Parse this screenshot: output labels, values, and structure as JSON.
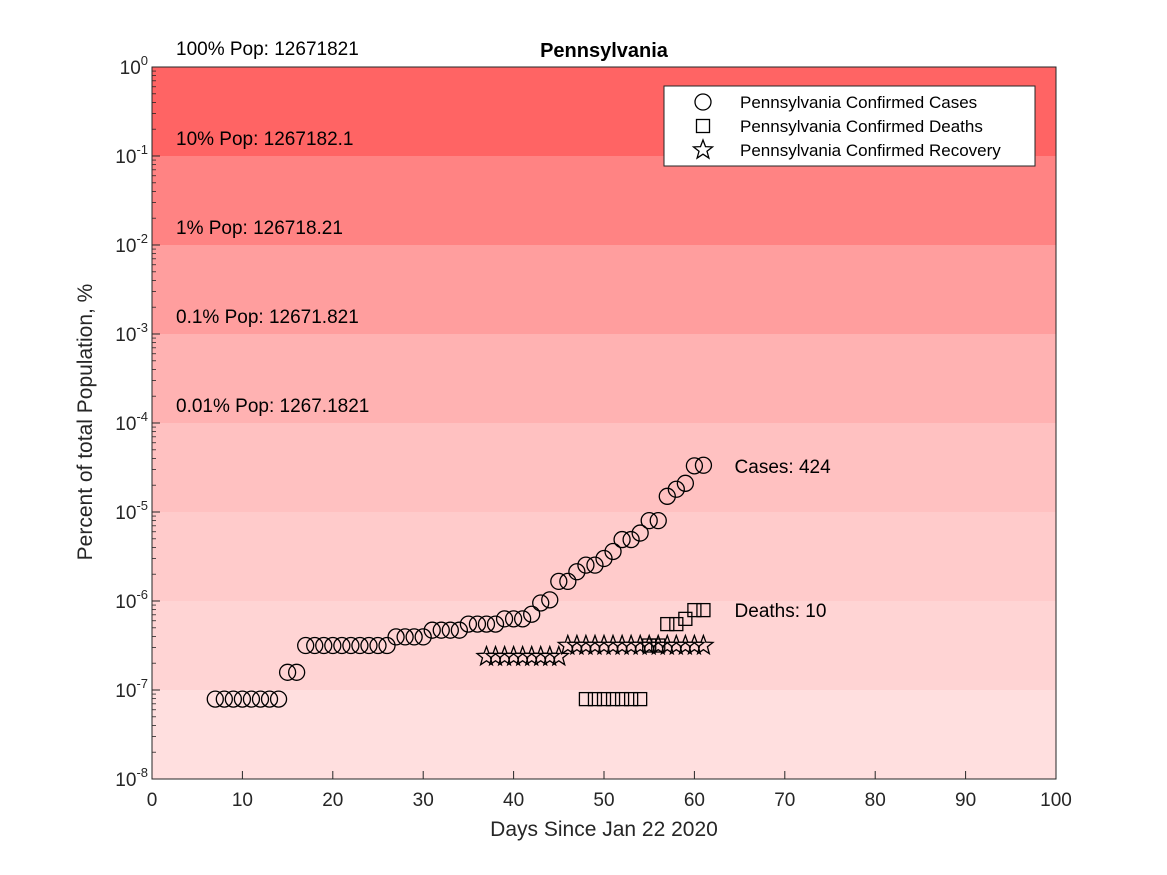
{
  "chart_data": {
    "type": "scatter",
    "title": "Pennsylvania",
    "xlabel": "Days Since Jan 22 2020",
    "ylabel": "Percent of total Population, %",
    "xlim": [
      0,
      100
    ],
    "ylim": [
      1e-08,
      1
    ],
    "yscale": "log",
    "grid": false,
    "legend_position": "top-right",
    "x_ticks": [
      "0",
      "10",
      "20",
      "30",
      "40",
      "50",
      "60",
      "70",
      "80",
      "90",
      "100"
    ],
    "y_ticks": [
      {
        "base": "10",
        "exp": "-8"
      },
      {
        "base": "10",
        "exp": "-7"
      },
      {
        "base": "10",
        "exp": "-6"
      },
      {
        "base": "10",
        "exp": "-5"
      },
      {
        "base": "10",
        "exp": "-4"
      },
      {
        "base": "10",
        "exp": "-3"
      },
      {
        "base": "10",
        "exp": "-2"
      },
      {
        "base": "10",
        "exp": "-1"
      },
      {
        "base": "10",
        "exp": "0"
      }
    ],
    "bands": [
      {
        "label": "100% Pop: 12671821",
        "from": 0.1,
        "to": 1,
        "color": "#ff6464"
      },
      {
        "label": "10% Pop: 1267182.1",
        "from": 0.01,
        "to": 0.1,
        "color": "#ff8383"
      },
      {
        "label": "1% Pop: 126718.21",
        "from": 0.001,
        "to": 0.01,
        "color": "#ff9e9e"
      },
      {
        "label": "0.1% Pop: 12671.821",
        "from": 0.0001,
        "to": 0.001,
        "color": "#ffb2b2"
      },
      {
        "label": "0.01% Pop: 1267.1821",
        "from": 1e-05,
        "to": 0.0001,
        "color": "#ffc1c1"
      },
      {
        "label": "",
        "from": 1e-06,
        "to": 1e-05,
        "color": "#ffcbcb"
      },
      {
        "label": "",
        "from": 1e-07,
        "to": 1e-06,
        "color": "#ffd4d4"
      },
      {
        "label": "",
        "from": 1e-08,
        "to": 1e-07,
        "color": "#ffdfdf"
      }
    ],
    "series": [
      {
        "name": "Pennsylvania Confirmed Cases",
        "marker": "circle",
        "x": [
          7,
          8,
          9,
          10,
          11,
          12,
          13,
          14,
          15,
          16,
          17,
          18,
          19,
          20,
          21,
          22,
          23,
          24,
          25,
          26,
          27,
          28,
          29,
          30,
          31,
          32,
          33,
          34,
          35,
          36,
          37,
          38,
          39,
          40,
          41,
          42,
          43,
          44,
          45,
          46,
          47,
          48,
          49,
          50,
          51,
          52,
          53,
          54,
          55,
          56,
          57,
          58,
          59,
          60,
          61
        ],
        "y": [
          7.9e-08,
          7.9e-08,
          7.9e-08,
          7.9e-08,
          7.9e-08,
          7.9e-08,
          7.9e-08,
          7.9e-08,
          1.58e-07,
          1.58e-07,
          3.16e-07,
          3.16e-07,
          3.16e-07,
          3.16e-07,
          3.16e-07,
          3.16e-07,
          3.16e-07,
          3.16e-07,
          3.16e-07,
          3.16e-07,
          3.95e-07,
          3.95e-07,
          3.95e-07,
          3.95e-07,
          4.7e-07,
          4.7e-07,
          4.7e-07,
          4.7e-07,
          5.5e-07,
          5.5e-07,
          5.5e-07,
          5.5e-07,
          6.3e-07,
          6.3e-07,
          6.3e-07,
          7.1e-07,
          9.5e-07,
          1.03e-06,
          1.66e-06,
          1.66e-06,
          2.13e-06,
          2.53e-06,
          2.53e-06,
          3e-06,
          3.6e-06,
          4.9e-06,
          4.9e-06,
          5.8e-06,
          8e-06,
          8e-06,
          1.5e-05,
          1.8e-05,
          2.1e-05,
          3.3e-05,
          3.35e-05
        ]
      },
      {
        "name": "Pennsylvania Confirmed Deaths",
        "marker": "square",
        "x": [
          48,
          49,
          50,
          51,
          52,
          53,
          54,
          55,
          56,
          57,
          58,
          59,
          60,
          61
        ],
        "y": [
          7.9e-08,
          7.9e-08,
          7.9e-08,
          7.9e-08,
          7.9e-08,
          7.9e-08,
          7.9e-08,
          3.16e-07,
          3.16e-07,
          5.5e-07,
          5.5e-07,
          6.3e-07,
          7.9e-07,
          7.9e-07
        ]
      },
      {
        "name": "Pennsylvania Confirmed Recovery",
        "marker": "star",
        "x": [
          37,
          38,
          39,
          40,
          41,
          42,
          43,
          44,
          45,
          46,
          47,
          48,
          49,
          50,
          51,
          52,
          53,
          54,
          55,
          56,
          57,
          58,
          59,
          60,
          61
        ],
        "y": [
          2.37e-07,
          2.37e-07,
          2.37e-07,
          2.37e-07,
          2.37e-07,
          2.37e-07,
          2.37e-07,
          2.37e-07,
          2.37e-07,
          3.16e-07,
          3.16e-07,
          3.16e-07,
          3.16e-07,
          3.16e-07,
          3.16e-07,
          3.16e-07,
          3.16e-07,
          3.16e-07,
          3.16e-07,
          3.16e-07,
          3.16e-07,
          3.16e-07,
          3.16e-07,
          3.16e-07,
          3.16e-07
        ]
      }
    ],
    "annotations": [
      {
        "text": "Cases: 424",
        "x": 64,
        "y": 3.3e-05
      },
      {
        "text": "Deaths: 10",
        "x": 64,
        "y": 7.9e-07
      }
    ]
  }
}
